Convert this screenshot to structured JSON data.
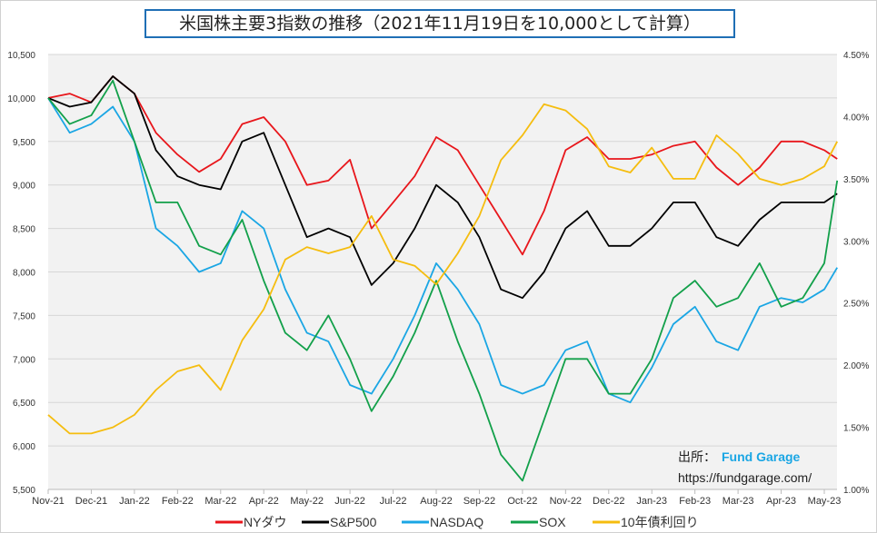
{
  "chart_data": {
    "type": "line",
    "title": "米国株主要3指数の推移（2021年11月19日を10,000として計算）",
    "x_tick_labels": [
      "Nov-21",
      "Dec-21",
      "Jan-22",
      "Feb-22",
      "Mar-22",
      "Apr-22",
      "May-22",
      "Jun-22",
      "Jul-22",
      "Aug-22",
      "Sep-22",
      "Oct-22",
      "Nov-22",
      "Dec-22",
      "Jan-23",
      "Feb-23",
      "Mar-23",
      "Apr-23",
      "May-23"
    ],
    "x_month_index": [
      0,
      0.5,
      1,
      1.5,
      2,
      2.5,
      3,
      3.5,
      4,
      4.5,
      5,
      5.5,
      6,
      6.5,
      7,
      7.5,
      8,
      8.5,
      9,
      9.5,
      10,
      10.5,
      11,
      11.5,
      12,
      12.5,
      13,
      13.5,
      14,
      14.5,
      15,
      15.5,
      16,
      16.5,
      17,
      17.5,
      18,
      18.3
    ],
    "y_left": {
      "ylim": [
        5500,
        10500
      ],
      "ticks": [
        "5,500",
        "6,000",
        "6,500",
        "7,000",
        "7,500",
        "8,000",
        "8,500",
        "9,000",
        "9,500",
        "10,000",
        "10,500"
      ]
    },
    "y_right": {
      "ylim": [
        1.0,
        4.5
      ],
      "ticks": [
        "1.00%",
        "1.50%",
        "2.00%",
        "2.50%",
        "3.00%",
        "3.50%",
        "4.00%",
        "4.50%"
      ]
    },
    "grid": true,
    "legend_position": "bottom",
    "series": [
      {
        "name": "NYダウ",
        "color": "#e8161b",
        "axis": "left",
        "values": [
          10000,
          10050,
          9950,
          10250,
          10050,
          9600,
          9350,
          9150,
          9300,
          9700,
          9780,
          9500,
          9000,
          9050,
          9290,
          8500,
          8800,
          9100,
          9550,
          9400,
          9000,
          8600,
          8200,
          8700,
          9400,
          9550,
          9300,
          9300,
          9350,
          9450,
          9500,
          9200,
          9000,
          9200,
          9500,
          9500,
          9400,
          9300
        ]
      },
      {
        "name": "S&P500",
        "color": "#000000",
        "axis": "left",
        "values": [
          10000,
          9900,
          9950,
          10250,
          10050,
          9400,
          9100,
          9000,
          8950,
          9500,
          9600,
          9000,
          8400,
          8500,
          8400,
          7850,
          8100,
          8500,
          9000,
          8800,
          8400,
          7800,
          7700,
          8000,
          8500,
          8700,
          8300,
          8300,
          8500,
          8800,
          8800,
          8400,
          8300,
          8600,
          8800,
          8800,
          8800,
          8900
        ]
      },
      {
        "name": "NASDAQ",
        "color": "#1aa6e4",
        "axis": "left",
        "values": [
          10000,
          9600,
          9700,
          9900,
          9500,
          8500,
          8300,
          8000,
          8100,
          8700,
          8500,
          7800,
          7300,
          7200,
          6700,
          6600,
          7000,
          7500,
          8100,
          7800,
          7400,
          6700,
          6600,
          6700,
          7100,
          7200,
          6600,
          6500,
          6900,
          7400,
          7600,
          7200,
          7100,
          7600,
          7700,
          7650,
          7800,
          8050
        ]
      },
      {
        "name": "SOX",
        "color": "#12a04a",
        "axis": "left",
        "values": [
          10000,
          9700,
          9800,
          10200,
          9500,
          8800,
          8800,
          8300,
          8200,
          8600,
          7900,
          7300,
          7100,
          7500,
          7000,
          6400,
          6800,
          7300,
          7900,
          7200,
          6600,
          5900,
          5600,
          6300,
          7000,
          7000,
          6600,
          6600,
          7000,
          7700,
          7900,
          7600,
          7700,
          8100,
          7600,
          7700,
          8100,
          9050
        ]
      },
      {
        "name": "10年債利回り",
        "color": "#f5bd0f",
        "axis": "right",
        "values": [
          1.6,
          1.45,
          1.45,
          1.5,
          1.6,
          1.8,
          1.95,
          2.0,
          1.8,
          2.2,
          2.45,
          2.85,
          2.95,
          2.9,
          2.95,
          3.2,
          2.85,
          2.8,
          2.65,
          2.9,
          3.2,
          3.65,
          3.85,
          4.1,
          4.05,
          3.9,
          3.6,
          3.55,
          3.75,
          3.5,
          3.5,
          3.85,
          3.7,
          3.5,
          3.45,
          3.5,
          3.6,
          3.8
        ]
      }
    ],
    "annotations": {
      "source_label": "出所：",
      "source_name": "Fund Garage",
      "source_url": "https://fundgarage.com/"
    }
  }
}
